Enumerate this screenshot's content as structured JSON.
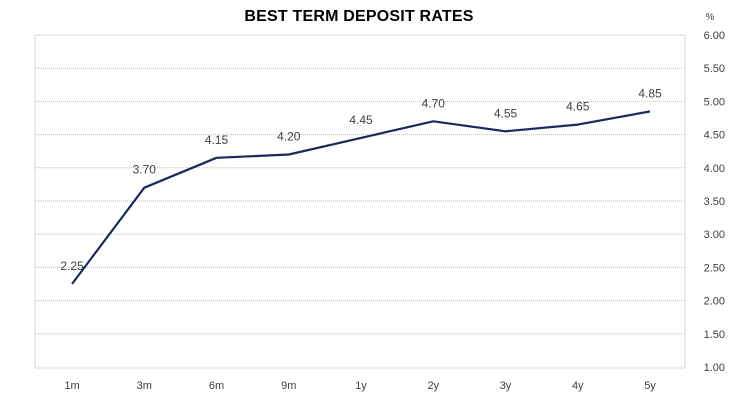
{
  "chart_data": {
    "type": "line",
    "title": "BEST TERM DEPOSIT RATES",
    "unit": "%",
    "categories": [
      "1m",
      "3m",
      "6m",
      "9m",
      "1y",
      "2y",
      "3y",
      "4y",
      "5y"
    ],
    "values": [
      2.25,
      3.7,
      4.15,
      4.2,
      4.45,
      4.7,
      4.55,
      4.65,
      4.85
    ],
    "data_labels": [
      "2.25",
      "3.70",
      "4.15",
      "4.20",
      "4.45",
      "4.70",
      "4.55",
      "4.65",
      "4.85"
    ],
    "ylim": [
      1.0,
      6.0
    ],
    "y_ticks": [
      "1.00",
      "1.50",
      "2.00",
      "2.50",
      "3.00",
      "3.50",
      "4.00",
      "4.50",
      "5.00",
      "5.50",
      "6.00"
    ],
    "y_axis_position": "right",
    "grid": "horizontal-dotted",
    "line_color": "#1a2a5e",
    "grid_color": "#bfbfbf",
    "border_color": "#d9d9d9"
  }
}
